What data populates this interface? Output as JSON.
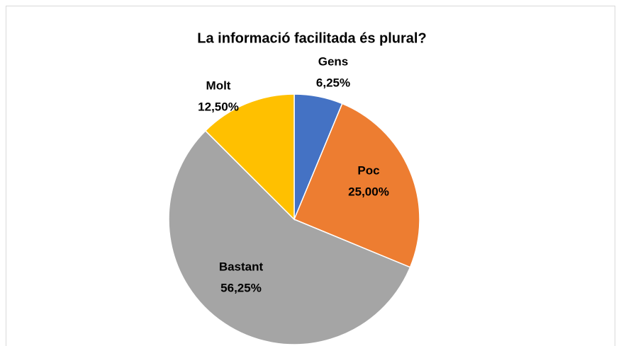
{
  "chart_data": {
    "type": "pie",
    "title": "La informació facilitada és plural?",
    "categories": [
      "Gens",
      "Poc",
      "Bastant",
      "Molt"
    ],
    "values": [
      6.25,
      25,
      56.25,
      12.5
    ],
    "value_labels": [
      "6,25%",
      "25,00%",
      "56,25%",
      "12,50%"
    ],
    "colors": [
      "#4472c4",
      "#ed7d31",
      "#a5a5a5",
      "#ffc000"
    ]
  }
}
